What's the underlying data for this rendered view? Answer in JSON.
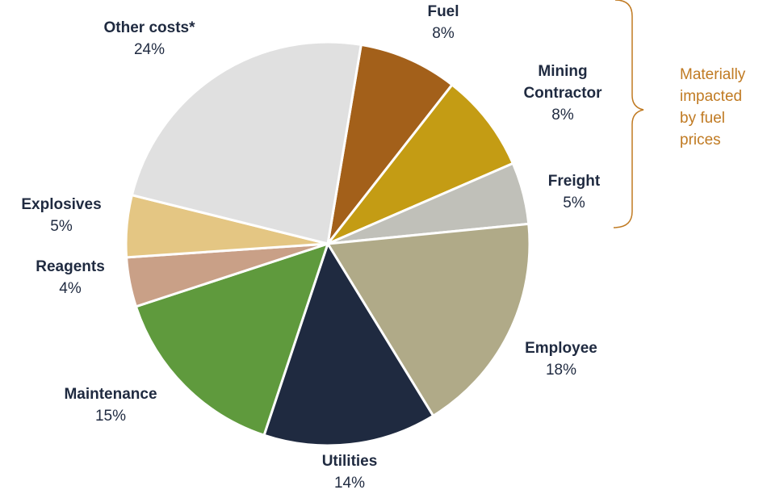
{
  "chart_data": {
    "type": "pie",
    "categories": [
      "Fuel",
      "Mining Contractor",
      "Freight",
      "Employee",
      "Utilities",
      "Maintenance",
      "Reagents",
      "Explosives",
      "Other costs*"
    ],
    "values": [
      8,
      8,
      5,
      18,
      14,
      15,
      4,
      5,
      24
    ],
    "value_labels": [
      "8%",
      "8%",
      "5%",
      "18%",
      "14%",
      "15%",
      "4%",
      "5%",
      "24%"
    ],
    "colors": [
      "#a3601a",
      "#c49c14",
      "#c0c0b9",
      "#b0aa88",
      "#1f2a40",
      "#5f9a3d",
      "#c9a087",
      "#e4c683",
      "#e0e0e0"
    ],
    "annotation": [
      "Materially",
      "impacted",
      "by fuel",
      "prices"
    ]
  }
}
